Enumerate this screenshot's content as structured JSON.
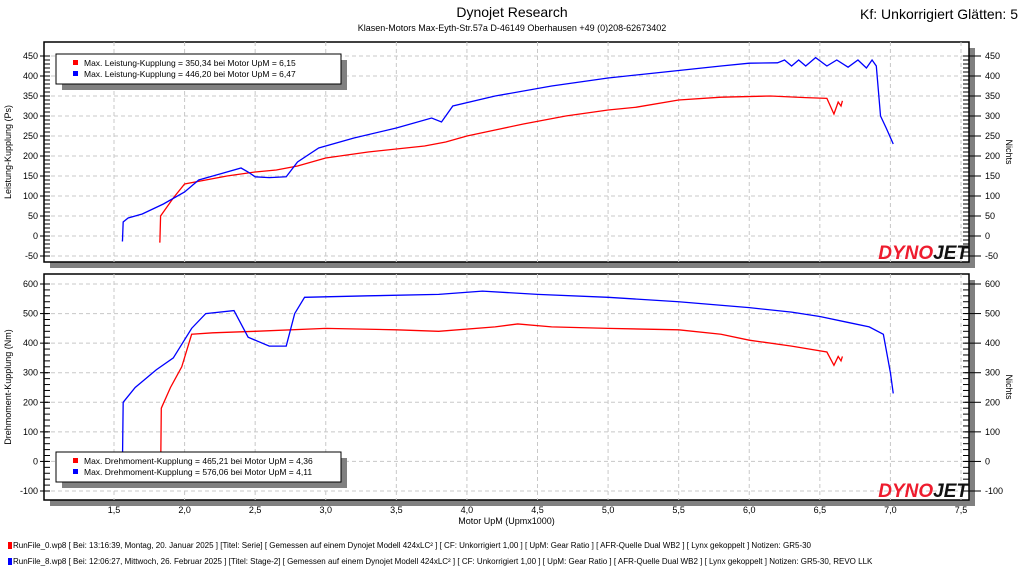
{
  "header": {
    "title": "Dynojet Research",
    "subtitle": "Klasen-Motors    Max-Eyth-Str.57a    D-46149 Oberhausen    +49 (0)208-62673402",
    "kf": "Kf: Unkorrigiert Glätten: 5"
  },
  "logo": "DYNOJET",
  "colors": {
    "run0": "#ff0000",
    "run8": "#0000ff"
  },
  "footer": [
    {
      "color": "#ff0000",
      "text": "RunFile_0.wp8  [  Bei:  13:16:39,  Montag,  20. Januar  2025  ]  [Titel:  Serie]    [  Gemessen  auf  einem  Dynojet  Modell  424xLC²  ]  [  CF:  Unkorrigiert  1,00  ]  [  UpM:  Gear  Ratio  ]  [  AFR-Quelle    Dual  WB2  ]  [  Lynx  gekoppelt  ]  Notizen:  GR5-30"
    },
    {
      "color": "#0000ff",
      "text": "RunFile_8.wp8  [  Bei:  12:06:27,  Mittwoch,  26. Februar  2025  ]  [Titel:  Stage-2]    [  Gemessen  auf  einem  Dynojet  Modell  424xLC²  ]  [  CF:  Unkorrigiert  1,00  ]  [  UpM:  Gear  Ratio  ]  [  AFR-Quelle    Dual  WB2  ]  [  Lynx  gekoppelt  ]  Notizen:  GR5-30,  REVO  LLK"
    }
  ],
  "chart_data": [
    {
      "type": "line",
      "ylabel": "Leistung-Kupplung (Ps)",
      "y2label": "Nichts",
      "ylim": [
        -50,
        450
      ],
      "yticks": [
        "-50",
        "0",
        "50",
        "100",
        "150",
        "200",
        "250",
        "300",
        "350",
        "400",
        "450"
      ],
      "legend": [
        "Max. Leistung-Kupplung = 350,34 bei Motor UpM = 6,15",
        "Max. Leistung-Kupplung = 446,20 bei Motor UpM = 6,47"
      ],
      "legend_placement": "top-left",
      "series": [
        {
          "name": "RunFile_0",
          "color": "#ff0000",
          "points": [
            [
              1.82,
              -15
            ],
            [
              1.825,
              -15
            ],
            [
              1.83,
              50
            ],
            [
              1.87,
              70
            ],
            [
              1.92,
              95
            ],
            [
              2.0,
              130
            ],
            [
              2.15,
              140
            ],
            [
              2.3,
              150
            ],
            [
              2.5,
              160
            ],
            [
              2.65,
              165
            ],
            [
              2.8,
              175
            ],
            [
              3.0,
              195
            ],
            [
              3.3,
              210
            ],
            [
              3.7,
              225
            ],
            [
              3.85,
              235
            ],
            [
              4.0,
              250
            ],
            [
              4.2,
              265
            ],
            [
              4.4,
              280
            ],
            [
              4.7,
              300
            ],
            [
              5.0,
              315
            ],
            [
              5.2,
              322
            ],
            [
              5.5,
              340
            ],
            [
              5.8,
              347
            ],
            [
              6.15,
              350
            ],
            [
              6.4,
              346
            ],
            [
              6.55,
              344
            ],
            [
              6.6,
              305
            ],
            [
              6.63,
              335
            ],
            [
              6.65,
              325
            ],
            [
              6.66,
              338
            ]
          ]
        },
        {
          "name": "RunFile_8",
          "color": "#0000ff",
          "points": [
            [
              1.555,
              -12
            ],
            [
              1.56,
              -12
            ],
            [
              1.565,
              35
            ],
            [
              1.6,
              45
            ],
            [
              1.7,
              55
            ],
            [
              1.85,
              80
            ],
            [
              2.0,
              110
            ],
            [
              2.1,
              140
            ],
            [
              2.25,
              155
            ],
            [
              2.4,
              170
            ],
            [
              2.45,
              160
            ],
            [
              2.5,
              148
            ],
            [
              2.6,
              146
            ],
            [
              2.72,
              148
            ],
            [
              2.8,
              185
            ],
            [
              2.95,
              220
            ],
            [
              3.2,
              245
            ],
            [
              3.5,
              270
            ],
            [
              3.75,
              295
            ],
            [
              3.82,
              285
            ],
            [
              3.9,
              325
            ],
            [
              4.2,
              350
            ],
            [
              4.6,
              375
            ],
            [
              5.0,
              395
            ],
            [
              5.4,
              410
            ],
            [
              5.8,
              425
            ],
            [
              6.0,
              432
            ],
            [
              6.2,
              433
            ],
            [
              6.25,
              440
            ],
            [
              6.3,
              425
            ],
            [
              6.35,
              440
            ],
            [
              6.4,
              425
            ],
            [
              6.47,
              446
            ],
            [
              6.55,
              425
            ],
            [
              6.62,
              440
            ],
            [
              6.7,
              422
            ],
            [
              6.77,
              440
            ],
            [
              6.83,
              420
            ],
            [
              6.87,
              440
            ],
            [
              6.9,
              425
            ],
            [
              6.93,
              300
            ],
            [
              6.97,
              270
            ],
            [
              7.02,
              230
            ]
          ]
        }
      ]
    },
    {
      "type": "line",
      "ylabel": "Drehmoment-Kupplung (Nm)",
      "y2label": "Nichts",
      "ylim": [
        -100,
        600
      ],
      "yticks": [
        "-100",
        "0",
        "100",
        "200",
        "300",
        "400",
        "500",
        "600"
      ],
      "xlabel": "Motor UpM (Upmx1000)",
      "xticks": [
        "1,5",
        "2,0",
        "2,5",
        "3,0",
        "3,5",
        "4,0",
        "4,5",
        "5,0",
        "5,5",
        "6,0",
        "6,5",
        "7,0",
        "7,5"
      ],
      "xlim": [
        1.5,
        7.5
      ],
      "legend": [
        "Max. Drehmoment-Kupplung = 465,21 bei Motor UpM = 4,36",
        "Max. Drehmoment-Kupplung = 576,06 bei Motor UpM = 4,11"
      ],
      "legend_placement": "bottom-left",
      "series": [
        {
          "name": "RunFile_0",
          "color": "#ff0000",
          "points": [
            [
              1.83,
              -60
            ],
            [
              1.835,
              180
            ],
            [
              1.9,
              250
            ],
            [
              1.98,
              320
            ],
            [
              2.05,
              430
            ],
            [
              2.2,
              435
            ],
            [
              2.5,
              440
            ],
            [
              3.0,
              450
            ],
            [
              3.5,
              445
            ],
            [
              3.8,
              440
            ],
            [
              4.2,
              455
            ],
            [
              4.36,
              465
            ],
            [
              4.6,
              455
            ],
            [
              5.0,
              450
            ],
            [
              5.5,
              445
            ],
            [
              5.8,
              430
            ],
            [
              6.0,
              410
            ],
            [
              6.3,
              390
            ],
            [
              6.55,
              370
            ],
            [
              6.6,
              325
            ],
            [
              6.63,
              355
            ],
            [
              6.65,
              340
            ],
            [
              6.66,
              355
            ]
          ]
        },
        {
          "name": "RunFile_8",
          "color": "#0000ff",
          "points": [
            [
              1.56,
              0
            ],
            [
              1.565,
              200
            ],
            [
              1.65,
              250
            ],
            [
              1.8,
              310
            ],
            [
              1.92,
              350
            ],
            [
              2.05,
              450
            ],
            [
              2.15,
              500
            ],
            [
              2.35,
              510
            ],
            [
              2.45,
              420
            ],
            [
              2.6,
              390
            ],
            [
              2.72,
              390
            ],
            [
              2.78,
              500
            ],
            [
              2.85,
              555
            ],
            [
              3.3,
              560
            ],
            [
              3.8,
              565
            ],
            [
              4.11,
              576
            ],
            [
              4.5,
              565
            ],
            [
              5.0,
              555
            ],
            [
              5.5,
              540
            ],
            [
              6.0,
              520
            ],
            [
              6.3,
              505
            ],
            [
              6.5,
              490
            ],
            [
              6.7,
              470
            ],
            [
              6.85,
              455
            ],
            [
              6.95,
              430
            ],
            [
              7.0,
              300
            ],
            [
              7.02,
              230
            ]
          ]
        }
      ]
    }
  ]
}
